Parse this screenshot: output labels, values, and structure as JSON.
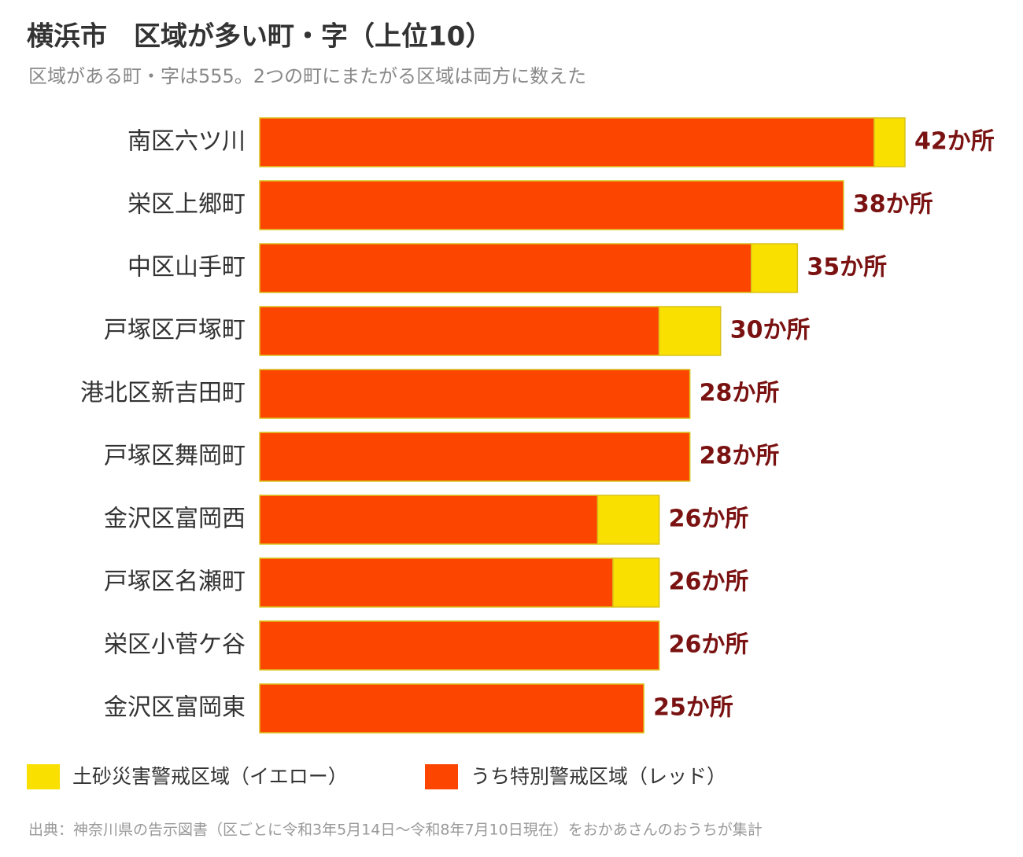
{
  "chart_data": {
    "type": "stacked_barh",
    "title": "横浜市　区域が多い町・字（上位10）",
    "subtitle": "区域がある町・字は555。2つの町にまたがる区域は両方に数えた",
    "categories": [
      "南区六ツ川",
      "栄区上郷町",
      "中区山手町",
      "戸塚区戸塚町",
      "港北区新吉田町",
      "戸塚区舞岡町",
      "金沢区富岡西",
      "戸塚区名瀬町",
      "栄区小菅ケ谷",
      "金沢区富岡東"
    ],
    "series": [
      {
        "name": "うち特別警戒区域（レッド）",
        "color": "#fc4600",
        "values": [
          40,
          38,
          32,
          26,
          28,
          28,
          22,
          23,
          26,
          25
        ]
      },
      {
        "name": "土砂災害警戒区域（イエロー）",
        "color": "#f9e000",
        "values": [
          2,
          0,
          3,
          4,
          0,
          0,
          4,
          3,
          0,
          0
        ]
      }
    ],
    "totals": [
      42,
      38,
      35,
      30,
      28,
      28,
      26,
      26,
      26,
      25
    ],
    "total_labels": [
      "42か所",
      "38か所",
      "35か所",
      "30か所",
      "28か所",
      "28か所",
      "26か所",
      "26か所",
      "26か所",
      "25か所"
    ],
    "source": "出典：神奈川県の告示図書（区ごとに令和3年5月14日〜令和8年7月10日現在）をおかあさんのおうちが集計"
  }
}
